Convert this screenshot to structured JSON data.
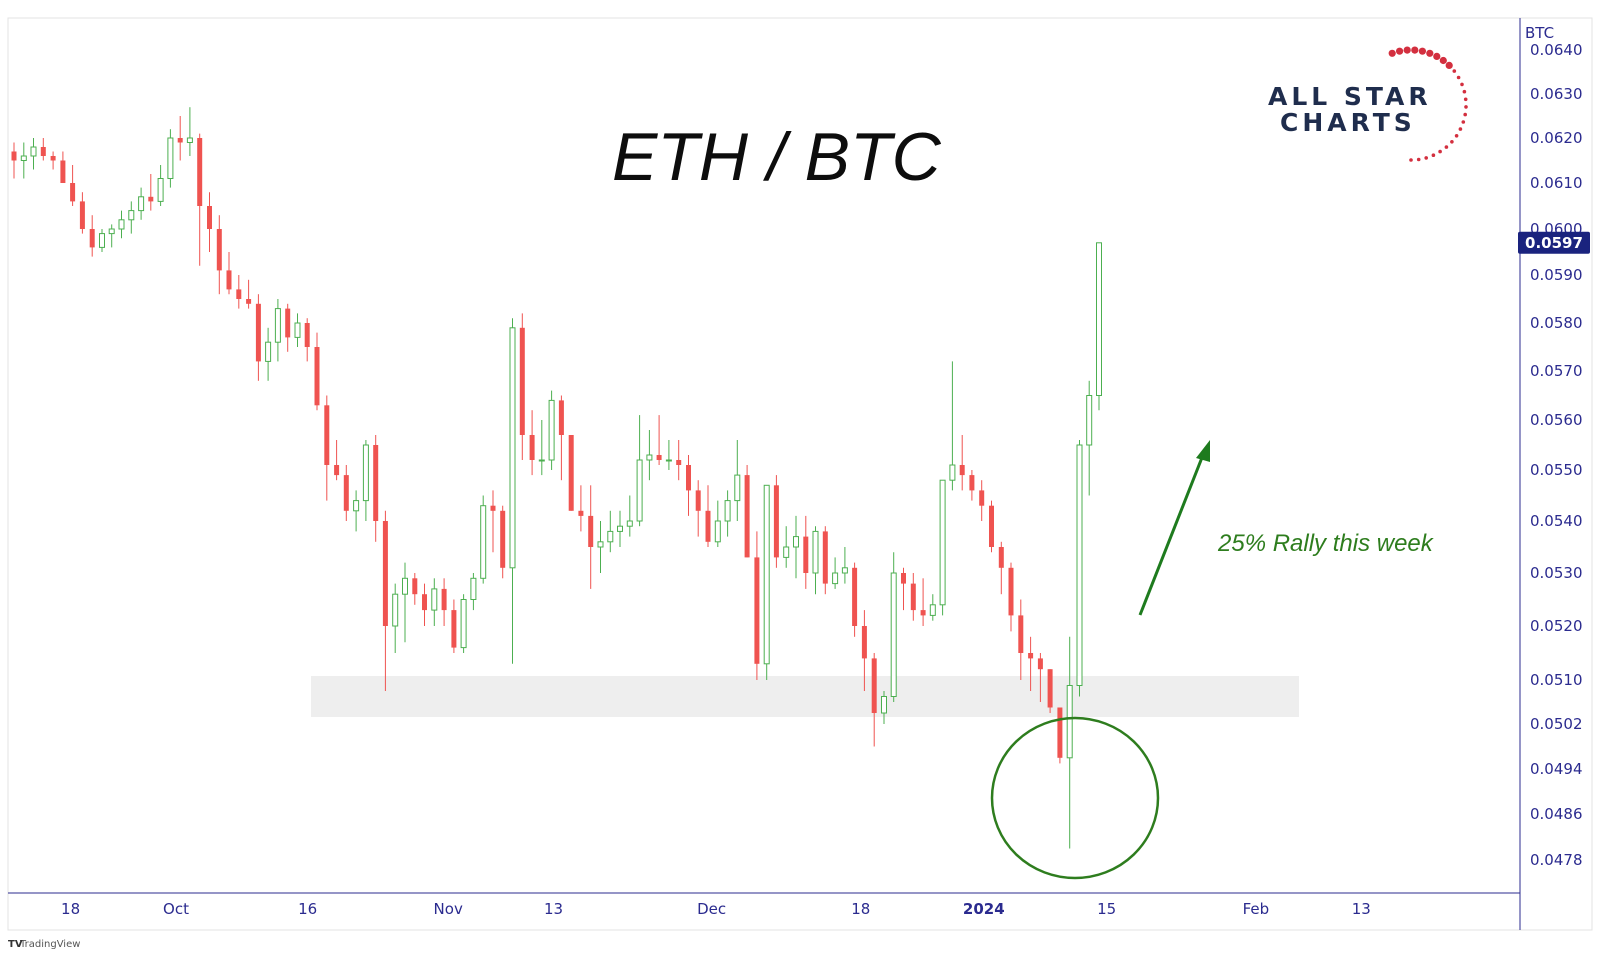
{
  "chart_data": {
    "type": "candlestick",
    "title": "ETH / BTC",
    "unit_label": "BTC",
    "ylim": [
      0.0474,
      0.0642
    ],
    "y_ticks": [
      "0.0640",
      "0.0630",
      "0.0620",
      "0.0610",
      "0.0600",
      "0.0590",
      "0.0580",
      "0.0570",
      "0.0560",
      "0.0550",
      "0.0540",
      "0.0530",
      "0.0520",
      "0.0510",
      "0.0502",
      "0.0494",
      "0.0486",
      "0.0478"
    ],
    "x_ticks": [
      {
        "label": "18",
        "day": -12,
        "bold": false
      },
      {
        "label": "Oct",
        "day": 0,
        "bold": false
      },
      {
        "label": "16",
        "day": 15,
        "bold": false
      },
      {
        "label": "Nov",
        "day": 31,
        "bold": false
      },
      {
        "label": "13",
        "day": 43,
        "bold": false
      },
      {
        "label": "Dec",
        "day": 61,
        "bold": false
      },
      {
        "label": "18",
        "day": 78,
        "bold": false
      },
      {
        "label": "2024",
        "day": 92,
        "bold": true
      },
      {
        "label": "15",
        "day": 106,
        "bold": false
      },
      {
        "label": "Feb",
        "day": 123,
        "bold": false
      },
      {
        "label": "13",
        "day": 135,
        "bold": false
      }
    ],
    "last_price": "0.0597",
    "support_zone": [
      0.0504,
      0.051
    ],
    "annotation": "25% Rally this week",
    "colors": {
      "up": "#4caf50",
      "down": "#ef5350",
      "zone": "#eeeeee",
      "arrow": "#1e7b1e",
      "circle": "#2e7d1e",
      "price_tag": "#1a237e"
    },
    "candles": [
      [
        0.0617,
        0.0619,
        0.0611,
        0.0615
      ],
      [
        0.0615,
        0.0619,
        0.0611,
        0.0616
      ],
      [
        0.0616,
        0.062,
        0.0613,
        0.0618
      ],
      [
        0.0618,
        0.062,
        0.0615,
        0.0616
      ],
      [
        0.0616,
        0.0617,
        0.0613,
        0.0615
      ],
      [
        0.0615,
        0.0617,
        0.061,
        0.061
      ],
      [
        0.061,
        0.0614,
        0.0605,
        0.0606
      ],
      [
        0.0606,
        0.0608,
        0.0599,
        0.06
      ],
      [
        0.06,
        0.0603,
        0.0594,
        0.0596
      ],
      [
        0.0596,
        0.06,
        0.0595,
        0.0599
      ],
      [
        0.0599,
        0.0601,
        0.0596,
        0.06
      ],
      [
        0.06,
        0.0604,
        0.0598,
        0.0602
      ],
      [
        0.0602,
        0.0606,
        0.0599,
        0.0604
      ],
      [
        0.0604,
        0.0609,
        0.0602,
        0.0607
      ],
      [
        0.0607,
        0.0612,
        0.0604,
        0.0606
      ],
      [
        0.0606,
        0.0614,
        0.0605,
        0.0611
      ],
      [
        0.0611,
        0.0622,
        0.0609,
        0.062
      ],
      [
        0.062,
        0.0625,
        0.0615,
        0.0619
      ],
      [
        0.0619,
        0.0627,
        0.0616,
        0.062
      ],
      [
        0.062,
        0.0621,
        0.0592,
        0.0605
      ],
      [
        0.0605,
        0.0608,
        0.0595,
        0.06
      ],
      [
        0.06,
        0.0603,
        0.0586,
        0.0591
      ],
      [
        0.0591,
        0.0595,
        0.0586,
        0.0587
      ],
      [
        0.0587,
        0.059,
        0.0583,
        0.0585
      ],
      [
        0.0585,
        0.0589,
        0.0583,
        0.0584
      ],
      [
        0.0584,
        0.0586,
        0.0568,
        0.0572
      ],
      [
        0.0572,
        0.0579,
        0.0568,
        0.0576
      ],
      [
        0.0576,
        0.0585,
        0.0572,
        0.0583
      ],
      [
        0.0583,
        0.0584,
        0.0574,
        0.0577
      ],
      [
        0.0577,
        0.0582,
        0.0575,
        0.058
      ],
      [
        0.058,
        0.0581,
        0.0572,
        0.0575
      ],
      [
        0.0575,
        0.0578,
        0.0562,
        0.0563
      ],
      [
        0.0563,
        0.0565,
        0.0544,
        0.0551
      ],
      [
        0.0551,
        0.0556,
        0.0548,
        0.0549
      ],
      [
        0.0549,
        0.0551,
        0.054,
        0.0542
      ],
      [
        0.0542,
        0.0546,
        0.0538,
        0.0544
      ],
      [
        0.0544,
        0.0556,
        0.054,
        0.0555
      ],
      [
        0.0555,
        0.0557,
        0.0536,
        0.054
      ],
      [
        0.054,
        0.0542,
        0.0508,
        0.052
      ],
      [
        0.052,
        0.0528,
        0.0515,
        0.0526
      ],
      [
        0.0526,
        0.0532,
        0.0517,
        0.0529
      ],
      [
        0.0529,
        0.053,
        0.0524,
        0.0526
      ],
      [
        0.0526,
        0.0528,
        0.052,
        0.0523
      ],
      [
        0.0523,
        0.0529,
        0.052,
        0.0527
      ],
      [
        0.0527,
        0.0529,
        0.052,
        0.0523
      ],
      [
        0.0523,
        0.0525,
        0.0515,
        0.0516
      ],
      [
        0.0516,
        0.0526,
        0.0515,
        0.0525
      ],
      [
        0.0525,
        0.053,
        0.0523,
        0.0529
      ],
      [
        0.0529,
        0.0545,
        0.0528,
        0.0543
      ],
      [
        0.0543,
        0.0546,
        0.0534,
        0.0542
      ],
      [
        0.0542,
        0.0543,
        0.0529,
        0.0531
      ],
      [
        0.0531,
        0.0581,
        0.0513,
        0.0579
      ],
      [
        0.0579,
        0.0582,
        0.0552,
        0.0557
      ],
      [
        0.0557,
        0.0562,
        0.0549,
        0.0552
      ],
      [
        0.0552,
        0.056,
        0.0549,
        0.0552
      ],
      [
        0.0552,
        0.0566,
        0.055,
        0.0564
      ],
      [
        0.0564,
        0.0565,
        0.0548,
        0.0557
      ],
      [
        0.0557,
        0.0557,
        0.0542,
        0.0542
      ],
      [
        0.0542,
        0.0547,
        0.0538,
        0.0541
      ],
      [
        0.0541,
        0.0547,
        0.0527,
        0.0535
      ],
      [
        0.0535,
        0.054,
        0.053,
        0.0536
      ],
      [
        0.0536,
        0.0542,
        0.0534,
        0.0538
      ],
      [
        0.0538,
        0.0542,
        0.0535,
        0.0539
      ],
      [
        0.0539,
        0.0545,
        0.0537,
        0.054
      ],
      [
        0.054,
        0.0561,
        0.0539,
        0.0552
      ],
      [
        0.0552,
        0.0558,
        0.0548,
        0.0553
      ],
      [
        0.0553,
        0.0561,
        0.0551,
        0.0552
      ],
      [
        0.0552,
        0.0556,
        0.055,
        0.0552
      ],
      [
        0.0552,
        0.0556,
        0.0548,
        0.0551
      ],
      [
        0.0551,
        0.0553,
        0.0541,
        0.0546
      ],
      [
        0.0546,
        0.0548,
        0.0537,
        0.0542
      ],
      [
        0.0542,
        0.0547,
        0.0535,
        0.0536
      ],
      [
        0.0536,
        0.0544,
        0.0535,
        0.054
      ],
      [
        0.054,
        0.0546,
        0.0537,
        0.0544
      ],
      [
        0.0544,
        0.0556,
        0.054,
        0.0549
      ],
      [
        0.0549,
        0.0551,
        0.0533,
        0.0533
      ],
      [
        0.0533,
        0.0538,
        0.051,
        0.0513
      ],
      [
        0.0513,
        0.0547,
        0.051,
        0.0547
      ],
      [
        0.0547,
        0.0549,
        0.0531,
        0.0533
      ],
      [
        0.0533,
        0.0539,
        0.0531,
        0.0535
      ],
      [
        0.0535,
        0.0541,
        0.0529,
        0.0537
      ],
      [
        0.0537,
        0.0541,
        0.0527,
        0.053
      ],
      [
        0.053,
        0.0539,
        0.0526,
        0.0538
      ],
      [
        0.0538,
        0.0539,
        0.0526,
        0.0528
      ],
      [
        0.0528,
        0.0533,
        0.0527,
        0.053
      ],
      [
        0.053,
        0.0535,
        0.0528,
        0.0531
      ],
      [
        0.0531,
        0.0532,
        0.0518,
        0.052
      ],
      [
        0.052,
        0.0523,
        0.0508,
        0.0514
      ],
      [
        0.0514,
        0.0515,
        0.0498,
        0.0504
      ],
      [
        0.0504,
        0.0508,
        0.0502,
        0.0507
      ],
      [
        0.0507,
        0.0534,
        0.0506,
        0.053
      ],
      [
        0.053,
        0.0531,
        0.0523,
        0.0528
      ],
      [
        0.0528,
        0.053,
        0.0521,
        0.0523
      ],
      [
        0.0523,
        0.0529,
        0.052,
        0.0522
      ],
      [
        0.0522,
        0.0526,
        0.0521,
        0.0524
      ],
      [
        0.0524,
        0.0548,
        0.0522,
        0.0548
      ],
      [
        0.0548,
        0.0572,
        0.0546,
        0.0551
      ],
      [
        0.0551,
        0.0557,
        0.0546,
        0.0549
      ],
      [
        0.0549,
        0.055,
        0.0544,
        0.0546
      ],
      [
        0.0546,
        0.0548,
        0.054,
        0.0543
      ],
      [
        0.0543,
        0.0544,
        0.0534,
        0.0535
      ],
      [
        0.0535,
        0.0536,
        0.0526,
        0.0531
      ],
      [
        0.0531,
        0.0532,
        0.0519,
        0.0522
      ],
      [
        0.0522,
        0.0525,
        0.051,
        0.0515
      ],
      [
        0.0515,
        0.0518,
        0.0508,
        0.0514
      ],
      [
        0.0514,
        0.0515,
        0.0506,
        0.0512
      ],
      [
        0.0512,
        0.0512,
        0.0504,
        0.0505
      ],
      [
        0.0505,
        0.0505,
        0.0495,
        0.0496
      ],
      [
        0.0496,
        0.0518,
        0.048,
        0.0509
      ],
      [
        0.0509,
        0.0556,
        0.0507,
        0.0555
      ],
      [
        0.0555,
        0.0568,
        0.0545,
        0.0565
      ],
      [
        0.0565,
        0.0597,
        0.0562,
        0.0597
      ]
    ]
  },
  "logo": {
    "line1": "ALL STAR",
    "line2": "CHARTS"
  },
  "credit": "TradingView"
}
